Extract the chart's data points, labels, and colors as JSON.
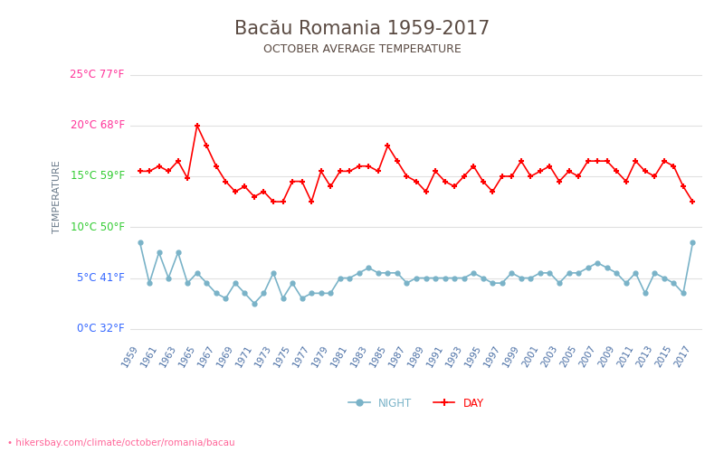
{
  "title": "Bacău Romania 1959-2017",
  "subtitle": "OCTOBER AVERAGE TEMPERATURE",
  "ylabel": "TEMPERATURE",
  "footer": "hikersbay.com/climate/october/romania/bacau",
  "years": [
    1959,
    1960,
    1961,
    1962,
    1963,
    1964,
    1965,
    1966,
    1967,
    1968,
    1969,
    1970,
    1971,
    1972,
    1973,
    1974,
    1975,
    1976,
    1977,
    1978,
    1979,
    1980,
    1981,
    1982,
    1983,
    1984,
    1985,
    1986,
    1987,
    1988,
    1989,
    1990,
    1991,
    1992,
    1993,
    1994,
    1995,
    1996,
    1997,
    1998,
    1999,
    2000,
    2001,
    2002,
    2003,
    2004,
    2005,
    2006,
    2007,
    2008,
    2009,
    2010,
    2011,
    2012,
    2013,
    2014,
    2015,
    2016,
    2017
  ],
  "day_temps": [
    15.5,
    15.5,
    16.0,
    15.5,
    16.5,
    14.8,
    20.0,
    18.0,
    16.0,
    14.5,
    13.5,
    14.0,
    13.0,
    13.5,
    12.5,
    12.5,
    14.5,
    14.5,
    12.5,
    15.5,
    14.0,
    15.5,
    15.5,
    16.0,
    16.0,
    15.5,
    18.0,
    16.5,
    15.0,
    14.5,
    13.5,
    15.5,
    14.5,
    14.0,
    15.0,
    16.0,
    14.5,
    13.5,
    15.0,
    15.0,
    16.5,
    15.0,
    15.5,
    16.0,
    14.5,
    15.5,
    15.0,
    16.5,
    16.5,
    16.5,
    15.5,
    14.5,
    16.5,
    15.5,
    15.0,
    16.5,
    16.0,
    14.0,
    12.5
  ],
  "night_temps": [
    8.5,
    4.5,
    7.5,
    5.0,
    7.5,
    4.5,
    5.5,
    4.5,
    3.5,
    3.0,
    4.5,
    3.5,
    2.5,
    3.5,
    5.5,
    3.0,
    4.5,
    3.0,
    3.5,
    3.5,
    3.5,
    5.0,
    5.0,
    5.5,
    6.0,
    5.5,
    5.5,
    5.5,
    4.5,
    5.0,
    5.0,
    5.0,
    5.0,
    5.0,
    5.0,
    5.5,
    5.0,
    4.5,
    4.5,
    5.5,
    5.0,
    5.0,
    5.5,
    5.5,
    4.5,
    5.5,
    5.5,
    6.0,
    6.5,
    6.0,
    5.5,
    4.5,
    5.5,
    3.5,
    5.5,
    5.0,
    4.5,
    3.5,
    8.5
  ],
  "day_color": "#ff0000",
  "night_color": "#7ab3c8",
  "night_marker_color": "#7ab3c8",
  "day_marker_color": "#ff0000",
  "background_color": "#ffffff",
  "grid_color": "#e0e0e0",
  "title_color": "#5a4a42",
  "subtitle_color": "#5a4a42",
  "ylabel_color": "#6a7a8a",
  "ytick_colors": {
    "25": "#ff3399",
    "20": "#ff3399",
    "15": "#33cc33",
    "10": "#33cc33",
    "5": "#3366ff",
    "0": "#3366ff"
  },
  "ytick_labels": {
    "25": "25°C 77°F",
    "20": "20°C 68°F",
    "15": "15°C 59°F",
    "10": "10°C 50°F",
    "5": "5°C 41°F",
    "0": "0°C 32°F"
  },
  "xtick_color": "#4a6fa5",
  "ylim": [
    -1,
    27
  ],
  "xlim": [
    1958,
    2018
  ]
}
